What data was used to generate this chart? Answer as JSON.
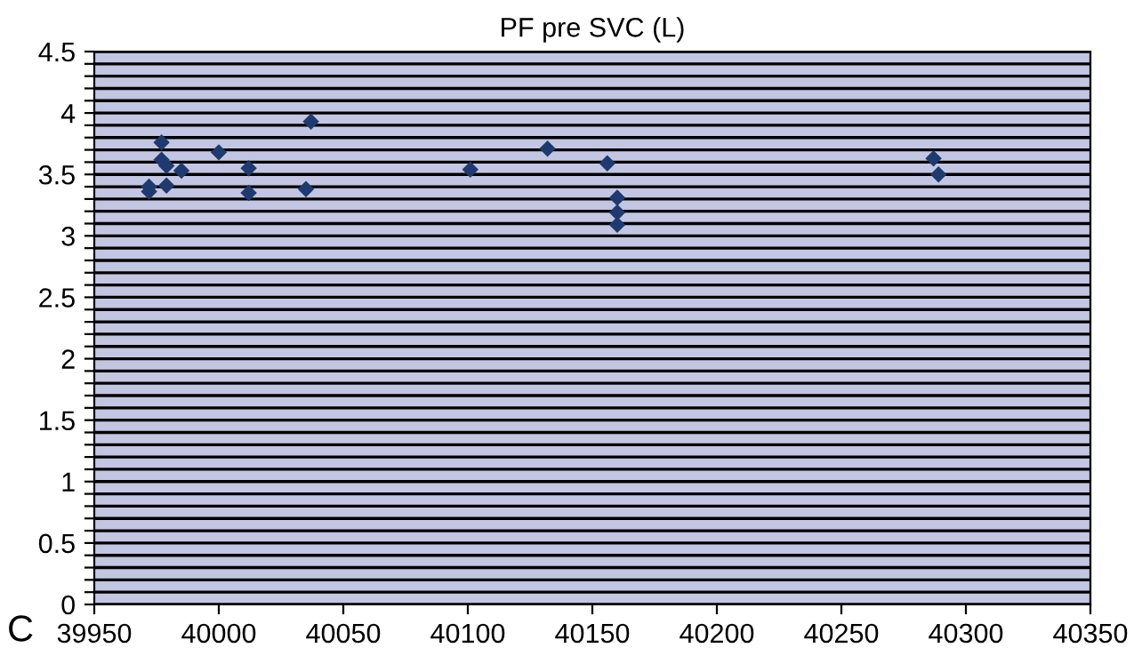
{
  "chart_data": {
    "type": "scatter",
    "title": "PF pre SVC (L)",
    "annotations": [
      "C"
    ],
    "x": [
      39972,
      39972,
      39977,
      39977,
      39979,
      39979,
      39985,
      40000,
      40012,
      40012,
      40037,
      40035,
      40101,
      40132,
      40156,
      40160,
      40160,
      40160,
      40287,
      40289
    ],
    "series": [
      {
        "color": "#1f3a6e",
        "values": [
          3.36,
          3.4,
          3.76,
          3.62,
          3.57,
          3.41,
          3.53,
          3.68,
          3.55,
          3.35,
          3.93,
          3.38,
          3.54,
          3.71,
          3.59,
          3.31,
          3.19,
          3.09,
          3.63,
          3.5
        ]
      }
    ],
    "xlim": [
      39950,
      40350
    ],
    "xticks": [
      39950,
      40000,
      40050,
      40100,
      40150,
      40200,
      40250,
      40300,
      40350
    ],
    "ylim": [
      0,
      4.5
    ],
    "yticks": [
      0,
      {
        "value": 0.1,
        "label": null
      },
      {
        "value": 0.2,
        "label": null
      },
      {
        "value": 0.3,
        "label": null
      },
      {
        "value": 0.4,
        "label": null
      },
      0.5,
      {
        "value": 0.6,
        "label": null
      },
      {
        "value": 0.7,
        "label": null
      },
      {
        "value": 0.8,
        "label": null
      },
      {
        "value": 0.9,
        "label": null
      },
      1,
      {
        "value": 1.1,
        "label": null
      },
      {
        "value": 1.2,
        "label": null
      },
      {
        "value": 1.3,
        "label": null
      },
      {
        "value": 1.4,
        "label": null
      },
      1.5,
      {
        "value": 1.6,
        "label": null
      },
      {
        "value": 1.7,
        "label": null
      },
      {
        "value": 1.8,
        "label": null
      },
      {
        "value": 1.9,
        "label": null
      },
      2,
      {
        "value": 2.1,
        "label": null
      },
      {
        "value": 2.2,
        "label": null
      },
      {
        "value": 2.3,
        "label": null
      },
      {
        "value": 2.4,
        "label": null
      },
      2.5,
      {
        "value": 2.6,
        "label": null
      },
      {
        "value": 2.7,
        "label": null
      },
      {
        "value": 2.8,
        "label": null
      },
      {
        "value": 2.9,
        "label": null
      },
      3,
      {
        "value": 3.1,
        "label": null
      },
      {
        "value": 3.2,
        "label": null
      },
      {
        "value": 3.3,
        "label": null
      },
      {
        "value": 3.4,
        "label": null
      },
      3.5,
      {
        "value": 3.6,
        "label": null
      },
      {
        "value": 3.7,
        "label": null
      },
      {
        "value": 3.8,
        "label": null
      },
      {
        "value": 3.9,
        "label": null
      },
      4,
      {
        "value": 4.1,
        "label": null
      },
      {
        "value": 4.2,
        "label": null
      },
      {
        "value": 4.3,
        "label": null
      },
      {
        "value": 4.4,
        "label": null
      },
      4.5
    ],
    "grid": "y",
    "marker": "diamond",
    "legend": false
  }
}
